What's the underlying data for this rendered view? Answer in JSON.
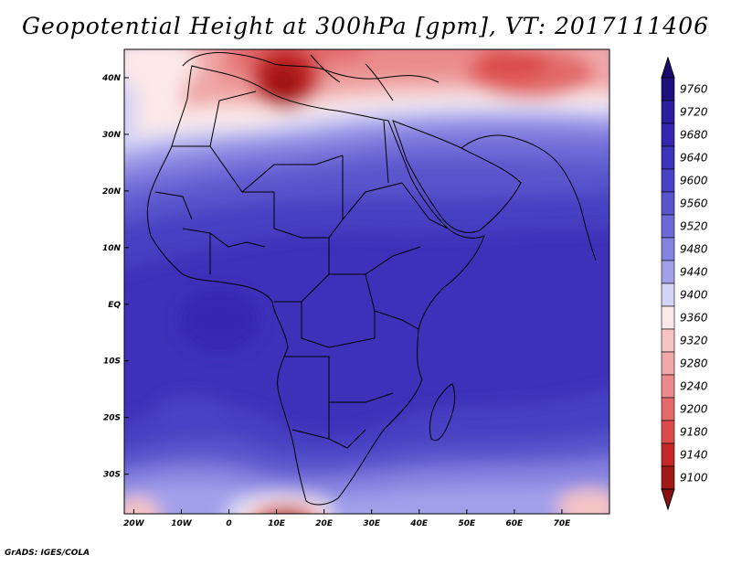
{
  "title": "Geopotential Height at 300hPa [gpm], VT: 2017111406",
  "footer": "GrADS: IGES/COLA",
  "map": {
    "lon_range": [
      -22,
      80
    ],
    "lat_range": [
      -37,
      45
    ],
    "lon_ticks": [
      {
        "value": -20,
        "label": "20W"
      },
      {
        "value": -10,
        "label": "10W"
      },
      {
        "value": 0,
        "label": "0"
      },
      {
        "value": 10,
        "label": "10E"
      },
      {
        "value": 20,
        "label": "20E"
      },
      {
        "value": 30,
        "label": "30E"
      },
      {
        "value": 40,
        "label": "40E"
      },
      {
        "value": 50,
        "label": "50E"
      },
      {
        "value": 60,
        "label": "60E"
      },
      {
        "value": 70,
        "label": "70E"
      }
    ],
    "lat_ticks": [
      {
        "value": 40,
        "label": "40N"
      },
      {
        "value": 30,
        "label": "30N"
      },
      {
        "value": 20,
        "label": "20N"
      },
      {
        "value": 10,
        "label": "10N"
      },
      {
        "value": 0,
        "label": "EQ"
      },
      {
        "value": -10,
        "label": "10S"
      },
      {
        "value": -20,
        "label": "20S"
      },
      {
        "value": -30,
        "label": "30S"
      }
    ]
  },
  "colorbar": {
    "levels": [
      {
        "value": "9760",
        "color": "#1e0f7a"
      },
      {
        "value": "9720",
        "color": "#2a1d9e"
      },
      {
        "value": "9680",
        "color": "#3526b2"
      },
      {
        "value": "9640",
        "color": "#3d32ba"
      },
      {
        "value": "9600",
        "color": "#4a42c4"
      },
      {
        "value": "9560",
        "color": "#5a54cc"
      },
      {
        "value": "9520",
        "color": "#6d69d6"
      },
      {
        "value": "9480",
        "color": "#8682e0"
      },
      {
        "value": "9440",
        "color": "#a3a0ea"
      },
      {
        "value": "9400",
        "color": "#d4d4f5"
      },
      {
        "value": "9360",
        "color": "#fbe8e8"
      },
      {
        "value": "9320",
        "color": "#f6c4c4"
      },
      {
        "value": "9280",
        "color": "#f0a8a8"
      },
      {
        "value": "9240",
        "color": "#ea8a8a"
      },
      {
        "value": "9200",
        "color": "#e36a6a"
      },
      {
        "value": "9180",
        "color": "#dc4c4c"
      },
      {
        "value": "9140",
        "color": "#c42828"
      },
      {
        "value": "9100",
        "color": "#a01818"
      }
    ],
    "low_end_color": "#8a1010",
    "high_end_color": "#1b0a6e"
  }
}
